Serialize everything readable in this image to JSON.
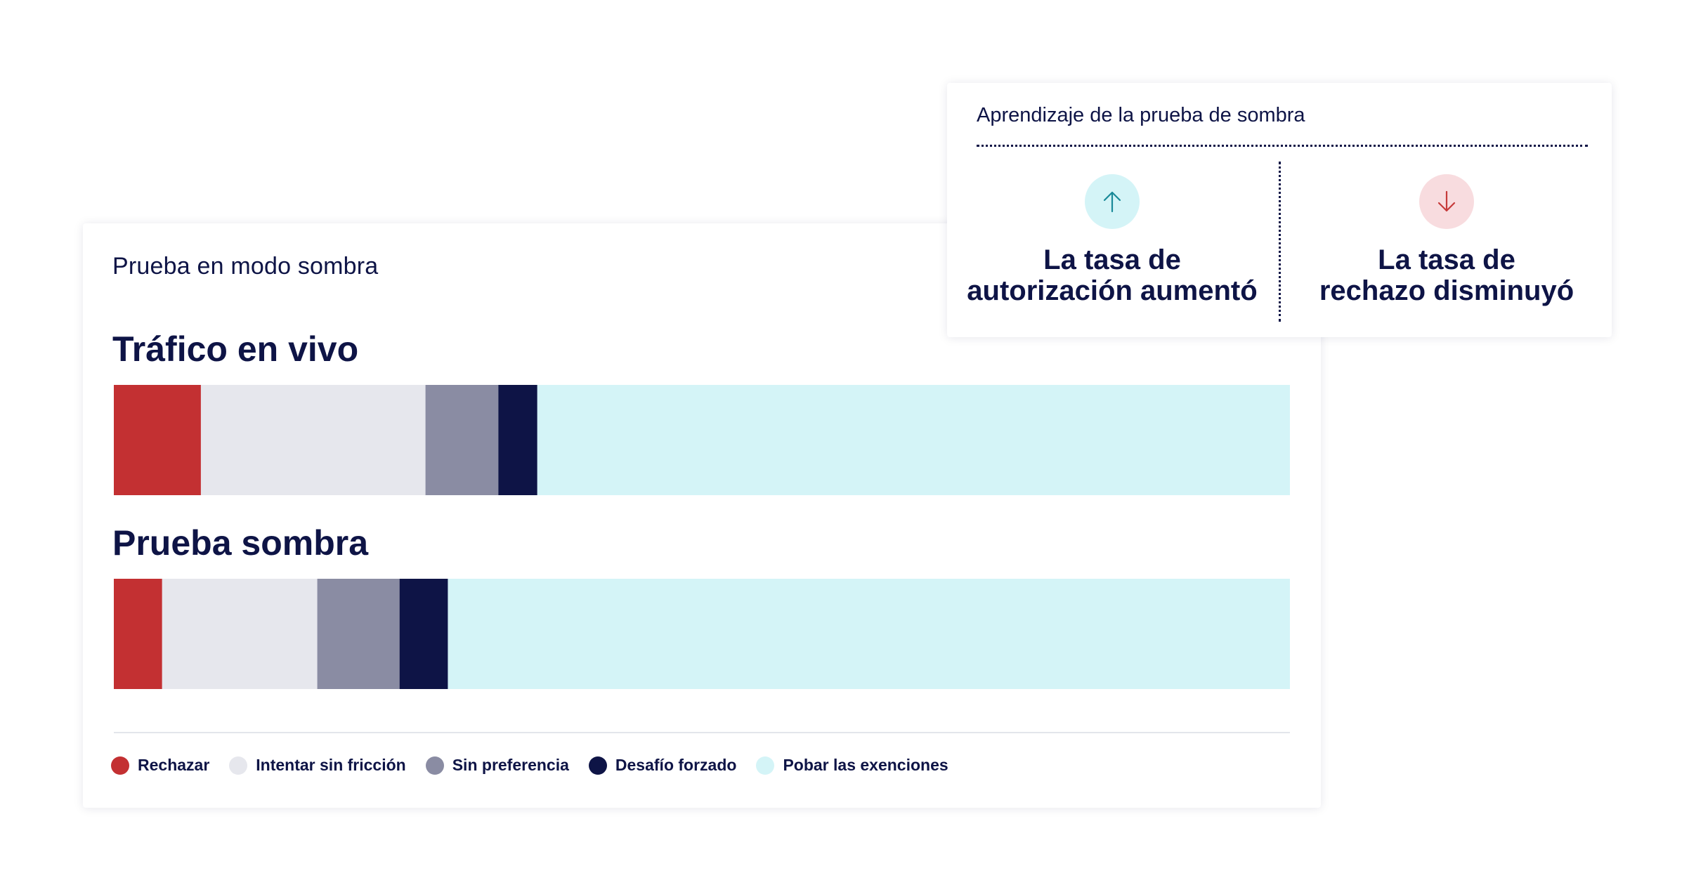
{
  "main_card": {
    "title": "Prueba en modo sombra"
  },
  "learnings_card": {
    "title": "Aprendizaje de la prueba de sombra",
    "metrics": [
      {
        "icon": "arrow-up-icon",
        "line1": "La tasa de",
        "line2": "autorización aumentó",
        "icon_bg": "#d4f4f7",
        "icon_color": "#1a8a99"
      },
      {
        "icon": "arrow-down-icon",
        "line1": "La tasa de",
        "line2": "rechazo disminuyó",
        "icon_bg": "#f8dcdf",
        "icon_color": "#c63a3a"
      }
    ]
  },
  "chart_data": {
    "type": "bar",
    "orientation": "horizontal",
    "stacked": true,
    "percent_stacked": true,
    "categories": [
      "Tráfico en vivo",
      "Prueba sombra"
    ],
    "series": [
      {
        "name": "Rechazar",
        "color": "#c33032",
        "values": [
          7.4,
          4.1
        ]
      },
      {
        "name": "Intentar sin fricción",
        "color": "#e6e7ed",
        "values": [
          19.1,
          13.2
        ]
      },
      {
        "name": "Sin preferencia",
        "color": "#8a8ca3",
        "values": [
          6.2,
          7.0
        ]
      },
      {
        "name": "Desafío forzado",
        "color": "#0e1446",
        "values": [
          3.3,
          4.1
        ]
      },
      {
        "name": "Pobar las exenciones",
        "color": "#d4f4f7",
        "values": [
          64.0,
          71.6
        ]
      }
    ],
    "legend_position": "bottom-left",
    "grid": false
  }
}
